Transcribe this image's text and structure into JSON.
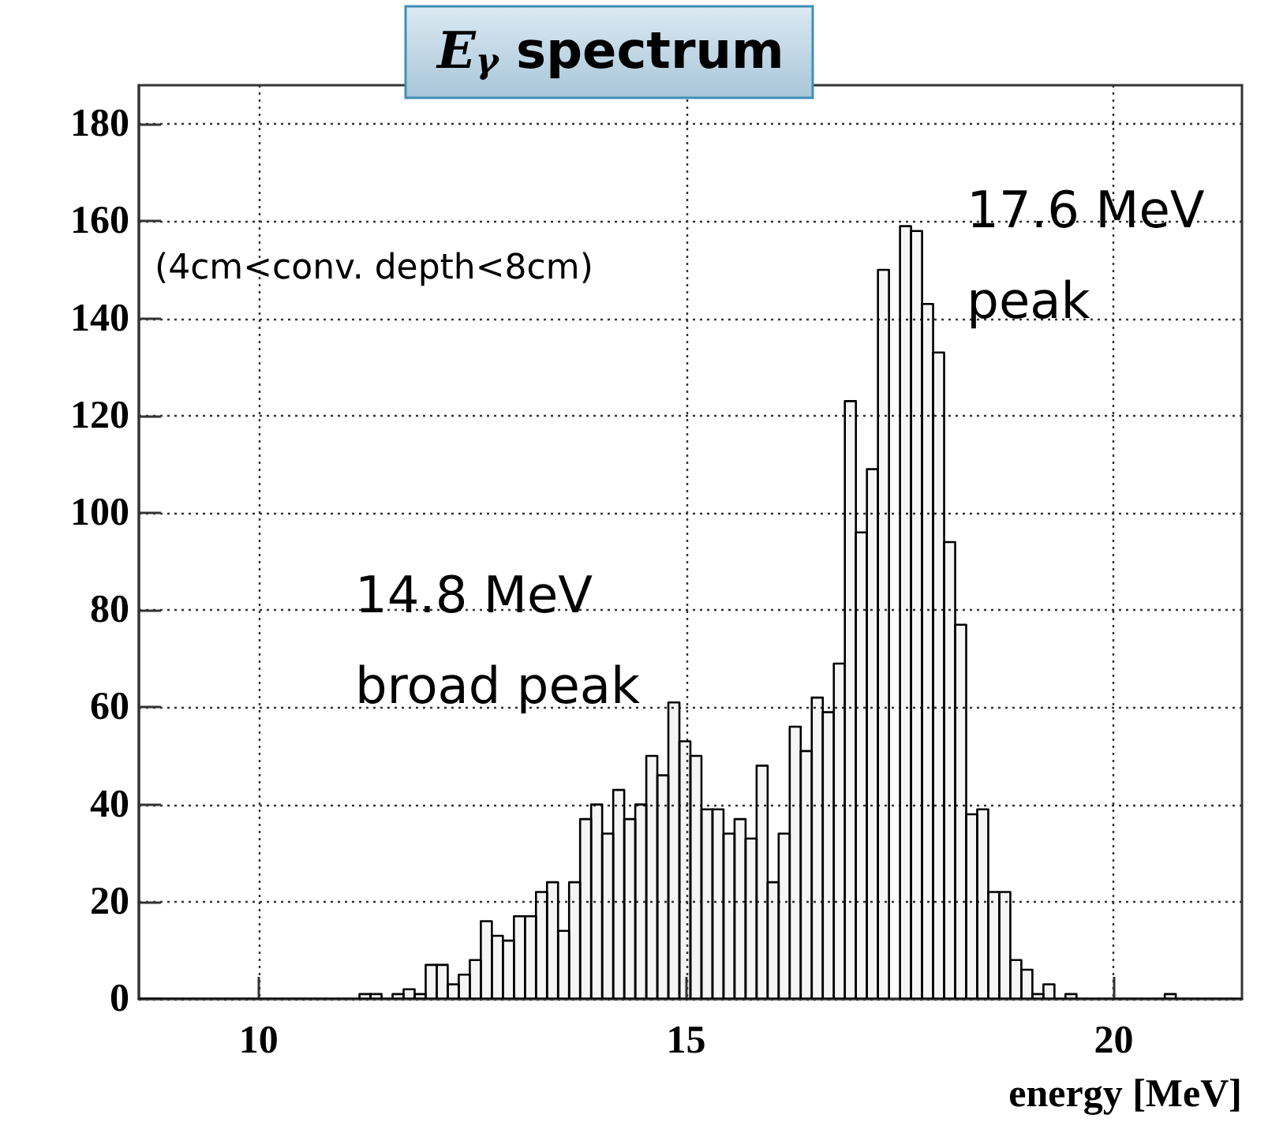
{
  "chart_data": {
    "type": "histogram",
    "title": "E$_{γ}$ spectrum",
    "xlabel": "energy [MeV]",
    "annotations": [
      "(4cm<conv. depth<8cm)",
      {
        "text": "14.8 MeV\nbroad peak",
        "x": 14.8,
        "y": 61
      },
      {
        "text": "17.6 MeV\npeak",
        "x": 17.6,
        "y": 159
      }
    ],
    "bins": [
      8.6,
      8.729,
      8.858,
      8.987,
      9.116,
      9.245,
      9.374,
      9.503,
      9.632,
      9.761,
      9.89,
      10.019,
      10.148,
      10.277,
      10.406,
      10.535,
      10.664,
      10.793,
      10.922,
      11.051,
      11.18,
      11.309,
      11.438,
      11.567,
      11.696,
      11.825,
      11.954,
      12.083,
      12.212,
      12.341,
      12.47,
      12.599,
      12.728,
      12.857,
      12.986,
      13.115,
      13.244,
      13.373,
      13.502,
      13.631,
      13.76,
      13.889,
      14.018,
      14.147,
      14.276,
      14.405,
      14.534,
      14.663,
      14.792,
      14.921,
      15.05,
      15.179,
      15.308,
      15.437,
      15.566,
      15.695,
      15.824,
      15.953,
      16.082,
      16.211,
      16.34,
      16.469,
      16.598,
      16.727,
      16.856,
      16.985,
      17.114,
      17.243,
      17.372,
      17.501,
      17.63,
      17.759,
      17.888,
      18.017,
      18.146,
      18.275,
      18.404,
      18.533,
      18.662,
      18.791,
      18.92,
      19.049,
      19.178,
      19.307,
      19.436,
      19.565,
      19.694,
      19.823,
      19.952,
      20.081,
      20.21,
      20.339,
      20.468,
      20.597,
      20.726,
      20.855,
      20.984,
      21.113,
      21.242,
      21.371,
      21.5
    ],
    "values": [
      0,
      0,
      0,
      0,
      0,
      0,
      0,
      0,
      0,
      0,
      0,
      0,
      0,
      0,
      0,
      0,
      0,
      0,
      0,
      0,
      1,
      1,
      0,
      1,
      2,
      1,
      7,
      7,
      3,
      5,
      8,
      16,
      13,
      12,
      17,
      17,
      22,
      24,
      14,
      24,
      37,
      40,
      34,
      43,
      37,
      40,
      50,
      46,
      61,
      53,
      50,
      39,
      39,
      34,
      37,
      33,
      48,
      24,
      34,
      56,
      51,
      62,
      59,
      69,
      123,
      96,
      109,
      150,
      null,
      159,
      158,
      143,
      133,
      94,
      77,
      38,
      39,
      22,
      22,
      8,
      6,
      1,
      3,
      0,
      1,
      0,
      0,
      0,
      0,
      0,
      0,
      0,
      0,
      1,
      0,
      0,
      0,
      0,
      0,
      0
    ],
    "color": "#000000",
    "xlim": [
      8.6,
      21.5
    ],
    "xticks": [
      10,
      15,
      20
    ],
    "ylim": [
      0,
      188
    ],
    "yticks": [
      0,
      20,
      40,
      60,
      80,
      100,
      120,
      140,
      160,
      180
    ],
    "grid": true
  }
}
